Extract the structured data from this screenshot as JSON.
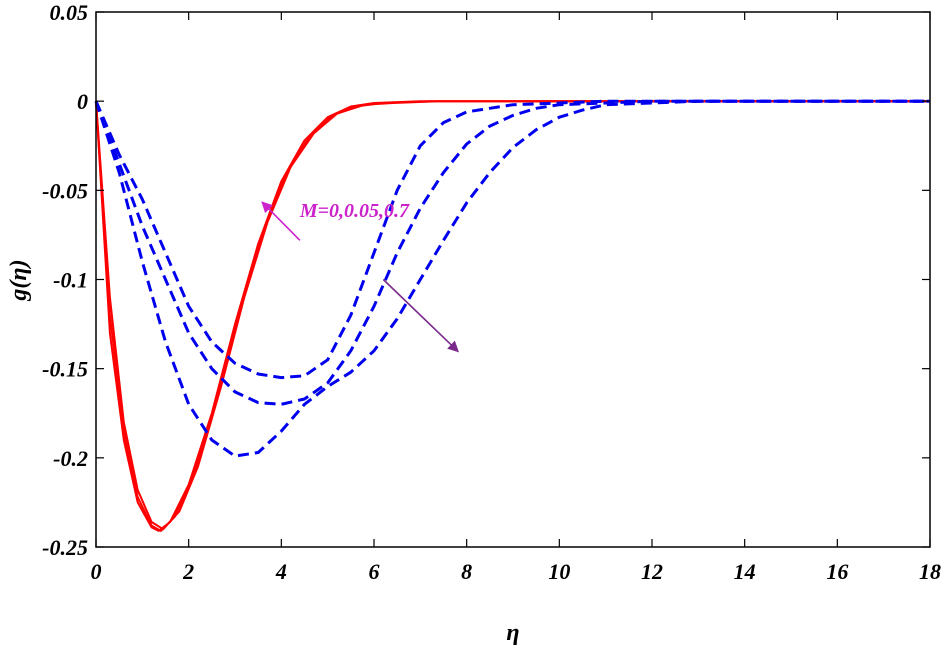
{
  "chart_data": {
    "type": "line",
    "xlabel": "η",
    "ylabel": "g(η)",
    "xlim": [
      0,
      18
    ],
    "ylim": [
      -0.25,
      0.05
    ],
    "xticks": [
      0,
      2,
      4,
      6,
      8,
      10,
      12,
      14,
      16,
      18
    ],
    "xtick_labels": [
      "0",
      "2",
      "4",
      "6",
      "8",
      "10",
      "12",
      "14",
      "16",
      "18"
    ],
    "yticks": [
      0.05,
      0,
      -0.05,
      -0.1,
      -0.15,
      -0.2,
      -0.25
    ],
    "ytick_labels": [
      "0.05",
      "0",
      "-0.05",
      "-0.1",
      "-0.15",
      "-0.2",
      "-0.25"
    ],
    "grid": false,
    "series": [
      {
        "group": "solid",
        "color": "#ff0000",
        "style": "solid",
        "x": [
          0,
          0.3,
          0.6,
          0.9,
          1.2,
          1.35,
          1.6,
          2.0,
          2.5,
          3.0,
          3.5,
          4.0,
          4.5,
          5.0,
          5.5,
          6.0,
          7.0,
          8.0,
          18.0
        ],
        "y": [
          0,
          -0.13,
          -0.19,
          -0.225,
          -0.239,
          -0.241,
          -0.236,
          -0.215,
          -0.175,
          -0.125,
          -0.08,
          -0.045,
          -0.022,
          -0.009,
          -0.003,
          -0.001,
          0,
          0,
          0
        ]
      },
      {
        "group": "solid",
        "color": "#ff0000",
        "style": "solid",
        "x": [
          0,
          0.3,
          0.6,
          0.9,
          1.2,
          1.4,
          1.7,
          2.1,
          2.6,
          3.1,
          3.6,
          4.1,
          4.6,
          5.1,
          5.6,
          6.2,
          7.2,
          8.2,
          18.0
        ],
        "y": [
          0,
          -0.12,
          -0.185,
          -0.222,
          -0.238,
          -0.241,
          -0.233,
          -0.21,
          -0.168,
          -0.118,
          -0.074,
          -0.041,
          -0.02,
          -0.008,
          -0.003,
          -0.001,
          0,
          0,
          0
        ]
      },
      {
        "group": "solid",
        "color": "#ff0000",
        "style": "solid",
        "x": [
          0,
          0.3,
          0.6,
          0.9,
          1.2,
          1.45,
          1.8,
          2.2,
          2.7,
          3.2,
          3.7,
          4.2,
          4.7,
          5.2,
          5.8,
          6.4,
          7.4,
          8.4,
          18.0
        ],
        "y": [
          0,
          -0.11,
          -0.18,
          -0.218,
          -0.236,
          -0.24,
          -0.23,
          -0.205,
          -0.16,
          -0.11,
          -0.068,
          -0.037,
          -0.018,
          -0.007,
          -0.002,
          -0.001,
          0,
          0,
          0
        ]
      },
      {
        "group": "dashed",
        "color": "#0000ee",
        "style": "dashed",
        "x": [
          0,
          0.5,
          1.0,
          1.5,
          2.0,
          2.5,
          3.0,
          3.5,
          4.0,
          4.5,
          5.0,
          5.5,
          6.0,
          6.5,
          7.0,
          7.5,
          8.0,
          9.0,
          10.0,
          11.0,
          12.0,
          13.0,
          18.0
        ],
        "y": [
          0,
          -0.03,
          -0.055,
          -0.085,
          -0.115,
          -0.135,
          -0.147,
          -0.153,
          -0.155,
          -0.154,
          -0.145,
          -0.12,
          -0.085,
          -0.05,
          -0.025,
          -0.012,
          -0.006,
          -0.002,
          -0.001,
          0,
          0,
          0,
          0
        ]
      },
      {
        "group": "dashed",
        "color": "#0000ee",
        "style": "dashed",
        "x": [
          0,
          0.5,
          1.0,
          1.5,
          2.0,
          2.5,
          3.0,
          3.5,
          4.0,
          4.5,
          5.0,
          5.5,
          6.0,
          6.5,
          7.0,
          7.5,
          8.0,
          8.5,
          9.0,
          9.5,
          10.0,
          11.0,
          12.0,
          13.0,
          18.0
        ],
        "y": [
          0,
          -0.035,
          -0.07,
          -0.1,
          -0.13,
          -0.15,
          -0.163,
          -0.169,
          -0.17,
          -0.167,
          -0.158,
          -0.14,
          -0.115,
          -0.085,
          -0.06,
          -0.04,
          -0.024,
          -0.014,
          -0.008,
          -0.004,
          -0.002,
          -0.001,
          0,
          0,
          0
        ]
      },
      {
        "group": "dashed",
        "color": "#0000ee",
        "style": "dashed",
        "x": [
          0,
          0.5,
          1.0,
          1.5,
          2.0,
          2.5,
          3.0,
          3.5,
          4.0,
          4.5,
          5.0,
          5.5,
          6.0,
          6.5,
          7.0,
          7.5,
          8.0,
          8.5,
          9.0,
          9.5,
          10.0,
          10.5,
          11.0,
          12.0,
          13.0,
          18.0
        ],
        "y": [
          0,
          -0.04,
          -0.09,
          -0.135,
          -0.17,
          -0.19,
          -0.199,
          -0.197,
          -0.185,
          -0.17,
          -0.16,
          -0.152,
          -0.14,
          -0.122,
          -0.1,
          -0.078,
          -0.057,
          -0.04,
          -0.026,
          -0.016,
          -0.009,
          -0.005,
          -0.002,
          -0.001,
          0,
          0
        ]
      }
    ],
    "annotation": {
      "text": "M=0,0.05,0.7",
      "color": "#cc22cc",
      "arrow_color": "#7a2a8a",
      "position_data": [
        4.4,
        -0.065
      ],
      "arrows": [
        {
          "from": [
            4.4,
            -0.078
          ],
          "to": [
            3.6,
            -0.057
          ]
        },
        {
          "from": [
            6.2,
            -0.1
          ],
          "to": [
            7.8,
            -0.14
          ]
        }
      ]
    }
  }
}
